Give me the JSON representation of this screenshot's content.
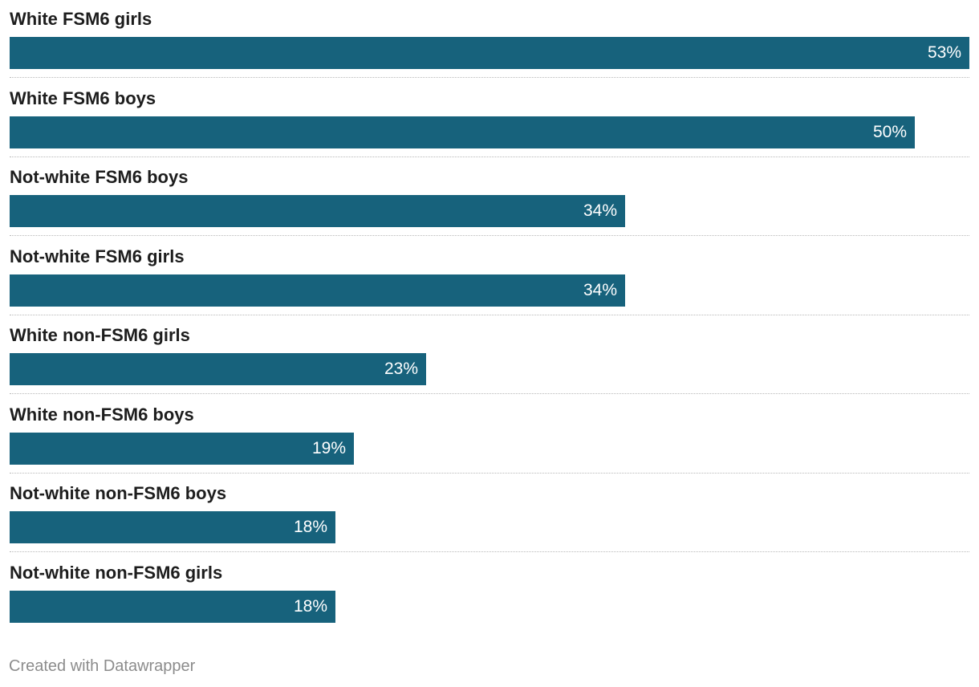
{
  "chart_data": {
    "type": "bar",
    "orientation": "horizontal",
    "categories": [
      "White FSM6 girls",
      "White FSM6 boys",
      "Not-white FSM6 boys",
      "Not-white FSM6 girls",
      "White non-FSM6 girls",
      "White non-FSM6 boys",
      "Not-white non-FSM6 boys",
      "Not-white non-FSM6 girls"
    ],
    "values": [
      53,
      50,
      34,
      34,
      23,
      19,
      18,
      18
    ],
    "value_labels": [
      "53%",
      "50%",
      "34%",
      "34%",
      "23%",
      "19%",
      "18%",
      "18%"
    ],
    "xlim": [
      0,
      53
    ],
    "unit": "%",
    "bar_color": "#17627c",
    "grid": false,
    "title": "",
    "xlabel": "",
    "ylabel": ""
  },
  "footer": {
    "credit": "Created with Datawrapper"
  }
}
